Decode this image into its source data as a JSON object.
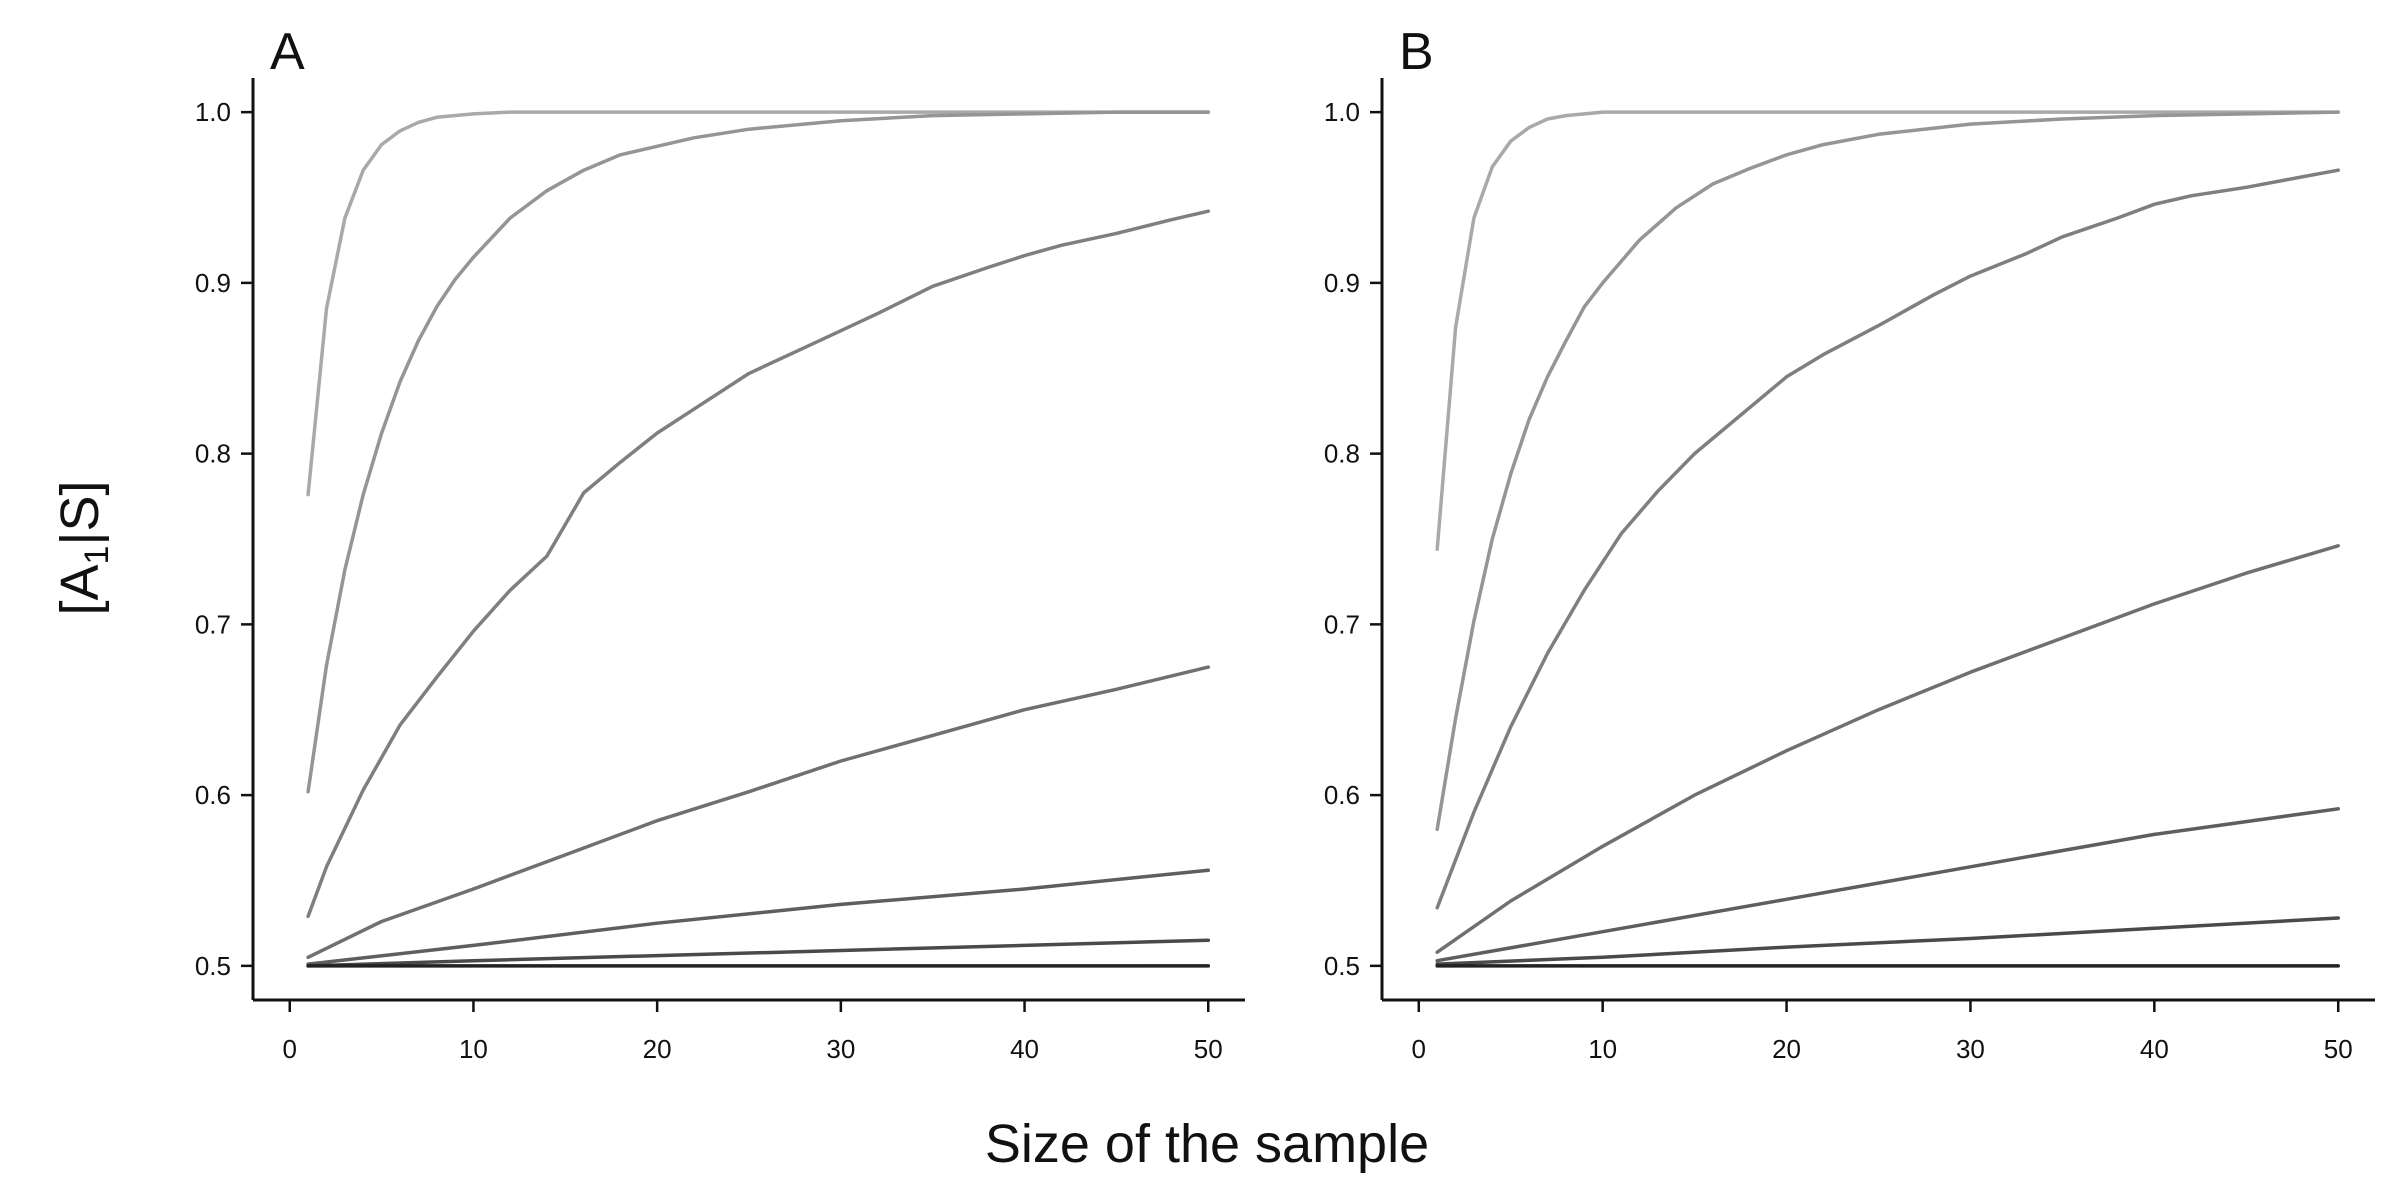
{
  "chart_data": {
    "type": "line",
    "xlabel": "Size of the sample",
    "ylabel": {
      "prefix": "[A",
      "subscript": "1",
      "suffix": "|S]"
    },
    "panels": [
      {
        "label": "A",
        "xlim": [
          -2,
          52
        ],
        "ylim": [
          0.48,
          1.02
        ],
        "xticks": [
          0,
          10,
          20,
          30,
          40,
          50
        ],
        "yticks": [
          0.5,
          0.6,
          0.7,
          0.8,
          0.9,
          1.0
        ],
        "ytick_labels": [
          "0.5",
          "0.6",
          "0.7",
          "0.8",
          "0.9",
          "1.0"
        ],
        "series": [
          {
            "color": "#a9a9a9",
            "x": [
              1,
              2,
              3,
              4,
              5,
              6,
              7,
              8,
              10,
              12,
              15,
              20,
              30,
              40,
              50
            ],
            "y": [
              0.776,
              0.885,
              0.938,
              0.966,
              0.981,
              0.989,
              0.994,
              0.997,
              0.999,
              1.0,
              1.0,
              1.0,
              1.0,
              1.0,
              1.0
            ]
          },
          {
            "color": "#959595",
            "x": [
              1,
              2,
              3,
              4,
              5,
              6,
              7,
              8,
              9,
              10,
              12,
              14,
              16,
              18,
              20,
              22,
              25,
              30,
              35,
              40,
              45,
              50
            ],
            "y": [
              0.602,
              0.676,
              0.732,
              0.776,
              0.812,
              0.842,
              0.866,
              0.886,
              0.902,
              0.915,
              0.938,
              0.954,
              0.966,
              0.975,
              0.98,
              0.985,
              0.99,
              0.995,
              0.998,
              0.999,
              1.0,
              1.0
            ]
          },
          {
            "color": "#7f7f7f",
            "x": [
              1,
              2,
              4,
              6,
              8,
              10,
              12,
              14,
              16,
              18,
              20,
              22,
              25,
              28,
              30,
              32,
              35,
              38,
              40,
              42,
              45,
              48,
              50
            ],
            "y": [
              0.529,
              0.558,
              0.603,
              0.641,
              0.669,
              0.696,
              0.72,
              0.74,
              0.777,
              0.795,
              0.812,
              0.826,
              0.847,
              0.862,
              0.872,
              0.882,
              0.898,
              0.909,
              0.916,
              0.922,
              0.929,
              0.937,
              0.942
            ]
          },
          {
            "color": "#707070",
            "x": [
              1,
              5,
              10,
              15,
              20,
              25,
              30,
              35,
              40,
              45,
              50
            ],
            "y": [
              0.505,
              0.526,
              0.545,
              0.565,
              0.585,
              0.602,
              0.62,
              0.635,
              0.65,
              0.662,
              0.675
            ]
          },
          {
            "color": "#5e5e5e",
            "x": [
              1,
              10,
              20,
              30,
              40,
              50
            ],
            "y": [
              0.501,
              0.512,
              0.525,
              0.536,
              0.545,
              0.556
            ]
          },
          {
            "color": "#4a4a4a",
            "x": [
              1,
              10,
              20,
              30,
              40,
              50
            ],
            "y": [
              0.5,
              0.503,
              0.506,
              0.509,
              0.512,
              0.515
            ]
          },
          {
            "color": "#222222",
            "x": [
              1,
              50
            ],
            "y": [
              0.5,
              0.5
            ]
          }
        ]
      },
      {
        "label": "B",
        "xlim": [
          -2,
          52
        ],
        "ylim": [
          0.48,
          1.02
        ],
        "xticks": [
          0,
          10,
          20,
          30,
          40,
          50
        ],
        "yticks": [
          0.5,
          0.6,
          0.7,
          0.8,
          0.9,
          1.0
        ],
        "ytick_labels": [
          "0.5",
          "0.6",
          "0.7",
          "0.8",
          "0.9",
          "1.0"
        ],
        "series": [
          {
            "color": "#a9a9a9",
            "x": [
              1,
              2,
              3,
              4,
              5,
              6,
              7,
              8,
              10,
              12,
              15,
              20,
              30,
              40,
              50
            ],
            "y": [
              0.744,
              0.874,
              0.938,
              0.968,
              0.983,
              0.991,
              0.996,
              0.998,
              1.0,
              1.0,
              1.0,
              1.0,
              1.0,
              1.0,
              1.0
            ]
          },
          {
            "color": "#959595",
            "x": [
              1,
              2,
              3,
              4,
              5,
              6,
              7,
              8,
              9,
              10,
              12,
              14,
              16,
              18,
              20,
              22,
              25,
              30,
              35,
              40,
              45,
              50
            ],
            "y": [
              0.58,
              0.645,
              0.702,
              0.75,
              0.788,
              0.82,
              0.845,
              0.866,
              0.886,
              0.9,
              0.925,
              0.944,
              0.958,
              0.967,
              0.975,
              0.981,
              0.987,
              0.993,
              0.996,
              0.998,
              0.999,
              1.0
            ]
          },
          {
            "color": "#7f7f7f",
            "x": [
              1,
              3,
              5,
              7,
              9,
              11,
              13,
              15,
              17,
              20,
              22,
              25,
              28,
              30,
              33,
              35,
              38,
              40,
              42,
              45,
              48,
              50
            ],
            "y": [
              0.534,
              0.59,
              0.64,
              0.683,
              0.72,
              0.753,
              0.778,
              0.8,
              0.818,
              0.845,
              0.858,
              0.875,
              0.893,
              0.904,
              0.917,
              0.927,
              0.938,
              0.946,
              0.951,
              0.956,
              0.962,
              0.966
            ]
          },
          {
            "color": "#707070",
            "x": [
              1,
              5,
              10,
              15,
              20,
              25,
              30,
              35,
              40,
              45,
              50
            ],
            "y": [
              0.508,
              0.538,
              0.57,
              0.6,
              0.626,
              0.65,
              0.672,
              0.692,
              0.712,
              0.73,
              0.746
            ]
          },
          {
            "color": "#5e5e5e",
            "x": [
              1,
              10,
              20,
              30,
              40,
              50
            ],
            "y": [
              0.503,
              0.52,
              0.539,
              0.558,
              0.577,
              0.592
            ]
          },
          {
            "color": "#4a4a4a",
            "x": [
              1,
              10,
              20,
              30,
              40,
              50
            ],
            "y": [
              0.501,
              0.505,
              0.511,
              0.516,
              0.522,
              0.528
            ]
          },
          {
            "color": "#222222",
            "x": [
              1,
              50
            ],
            "y": [
              0.5,
              0.5
            ]
          }
        ]
      }
    ]
  }
}
